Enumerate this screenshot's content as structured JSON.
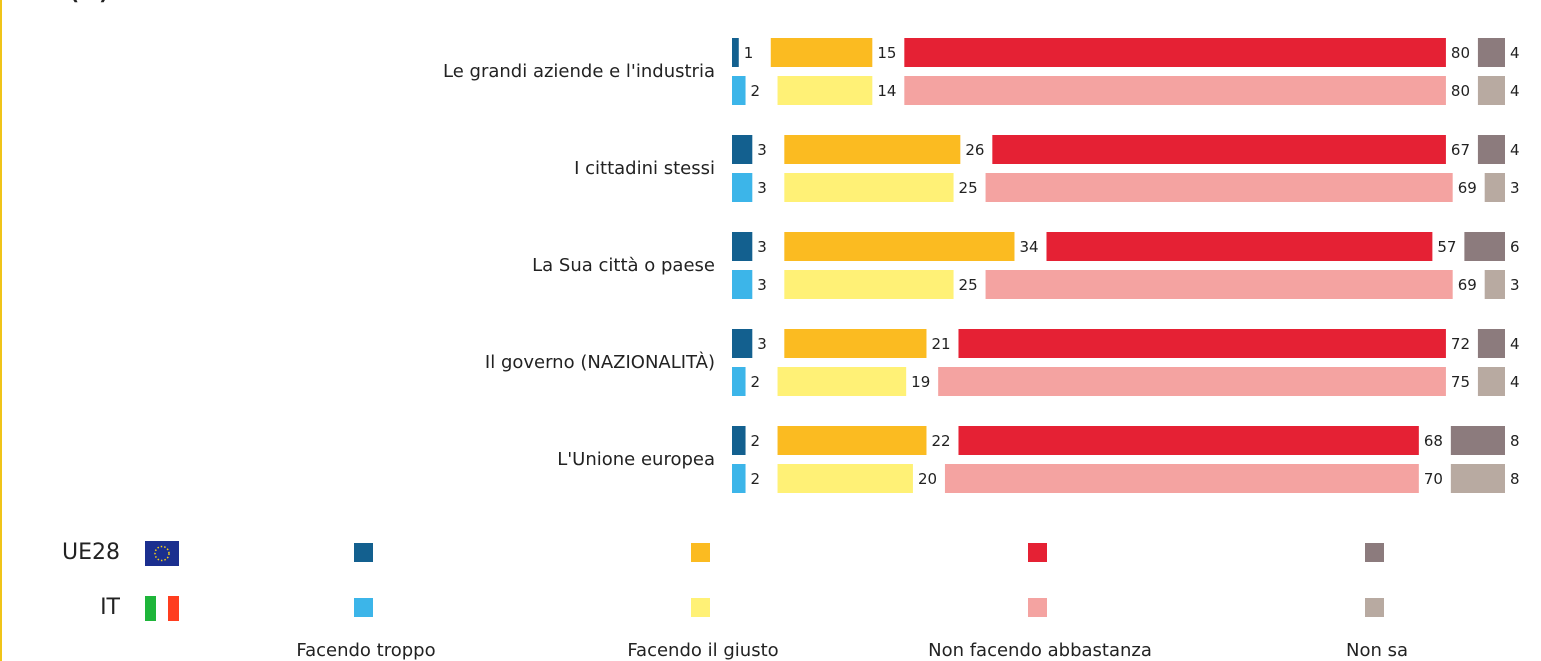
{
  "chart_data": {
    "type": "stacked-bar-horizontal",
    "unit_label": "(%)",
    "categories": [
      "Le grandi aziende e l'industria",
      "I cittadini stessi",
      "La Sua città o paese",
      "Il governo (NAZIONALITÀ)",
      "L'Unione europea"
    ],
    "segments": [
      "Facendo troppo",
      "Facendo il giusto",
      "Non facendo abbastanza",
      "Non sa"
    ],
    "series": [
      {
        "name": "UE28",
        "segments": [
          {
            "color": "#13608f",
            "values": [
              1,
              3,
              3,
              3,
              2
            ]
          },
          {
            "color": "#fbbb21",
            "values": [
              15,
              26,
              34,
              21,
              22
            ]
          },
          {
            "color": "#e52134",
            "values": [
              80,
              67,
              57,
              72,
              68
            ]
          },
          {
            "color": "#8c7b7d",
            "values": [
              4,
              4,
              6,
              4,
              8
            ]
          }
        ]
      },
      {
        "name": "IT",
        "segments": [
          {
            "color": "#3cb5e9",
            "values": [
              2,
              3,
              3,
              2,
              2
            ]
          },
          {
            "color": "#fff176",
            "values": [
              14,
              25,
              25,
              19,
              20
            ]
          },
          {
            "color": "#f4a3a1",
            "values": [
              80,
              69,
              69,
              75,
              70
            ]
          },
          {
            "color": "#b8aaa1",
            "values": [
              4,
              3,
              3,
              4,
              8
            ]
          }
        ]
      }
    ],
    "xlim": [
      0,
      100
    ]
  }
}
